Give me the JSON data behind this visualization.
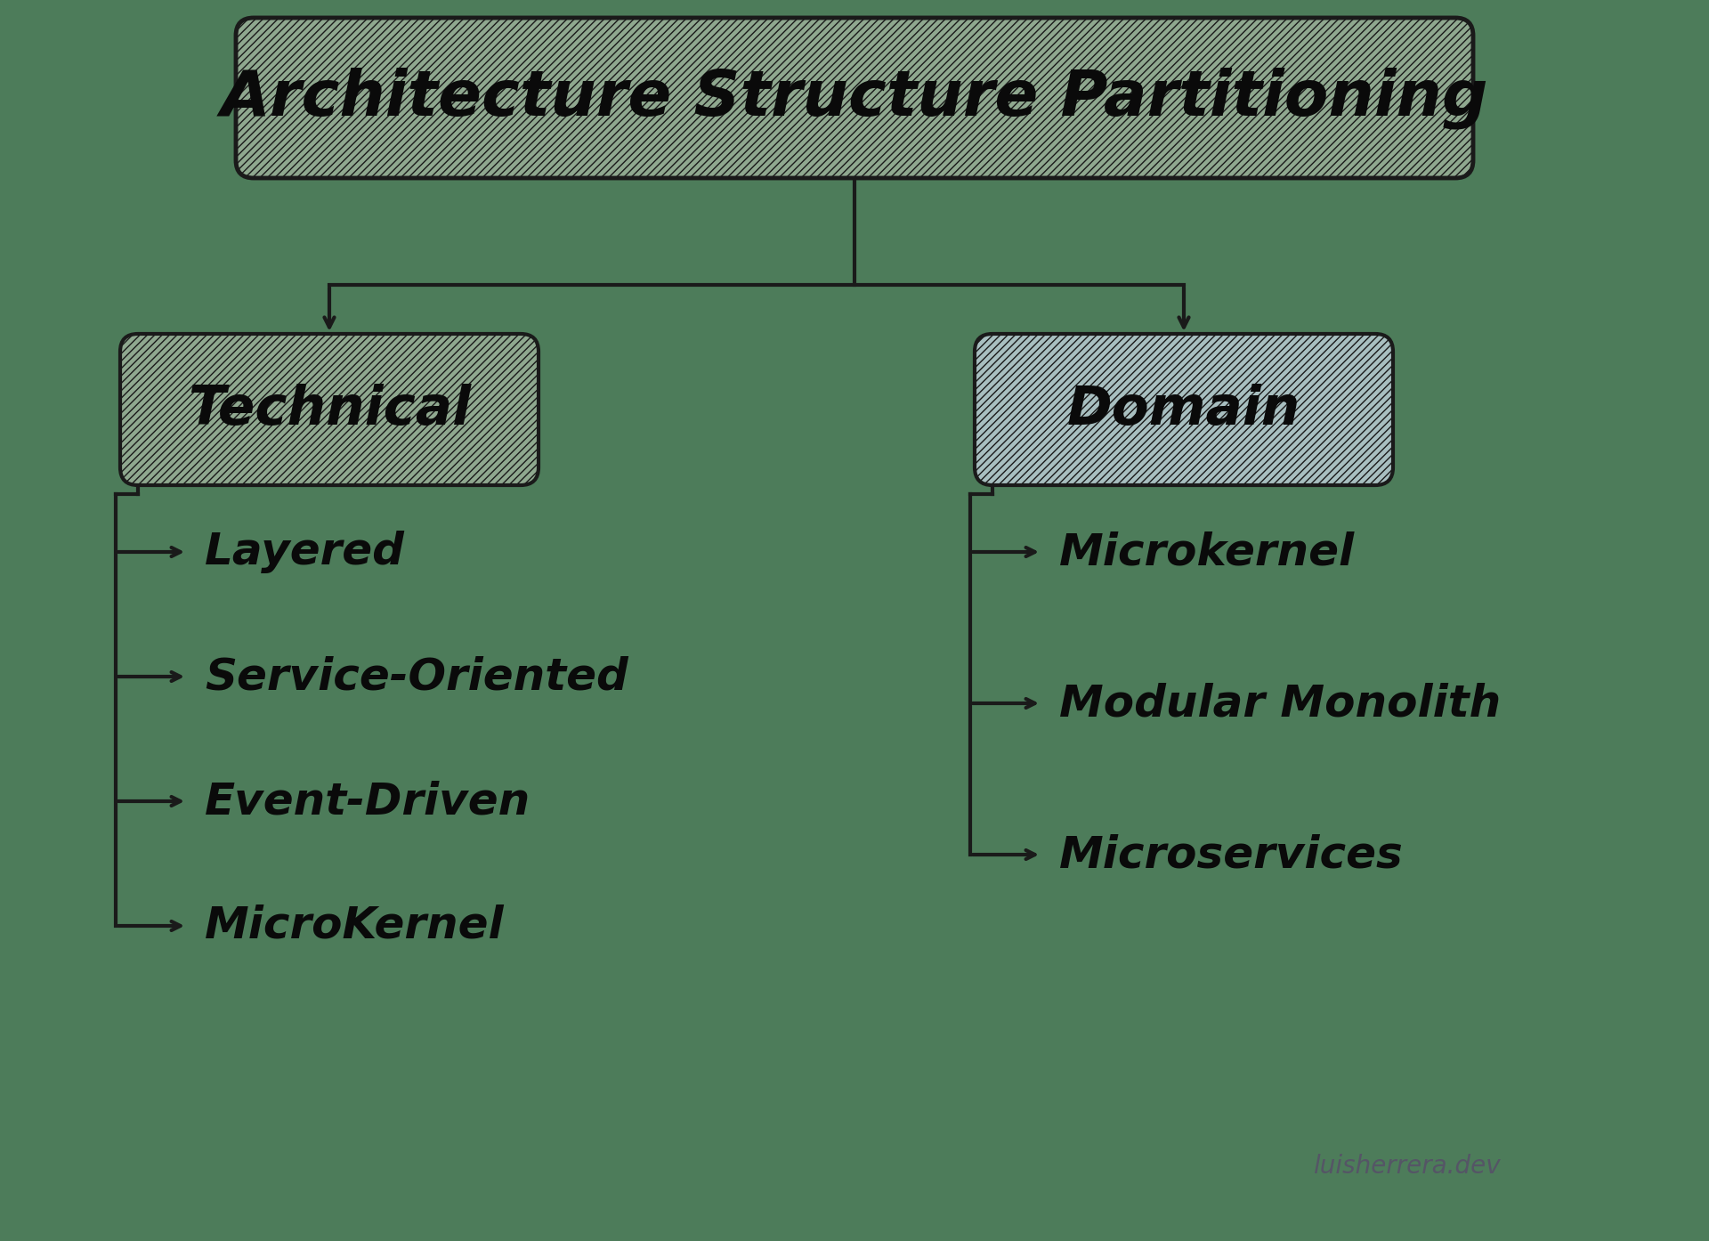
{
  "bg_color": "#4d7c5a",
  "diagram_bg": "#f0f0f0",
  "title": "Architecture Structure Partitioning",
  "title_box_color": "#8fa88f",
  "title_box_edge": "#1a1a1a",
  "left_node": "Technical",
  "right_node": "Domain",
  "node_box_color_left": "#8fa88f",
  "node_box_color_right": "#a8bfc0",
  "node_box_edge": "#1a1a1a",
  "left_items": [
    "Layered",
    "Service-Oriented",
    "Event-Driven",
    "MicroKernel"
  ],
  "right_items": [
    "Microkernel",
    "Modular Monolith",
    "Microservices"
  ],
  "watermark": "luisherrera.dev",
  "watermark_color": "#555566",
  "line_color": "#1a1a1a",
  "text_color": "#0a0a0a",
  "hatch_pattern": "////",
  "hatch_color": "#6a8a6a"
}
